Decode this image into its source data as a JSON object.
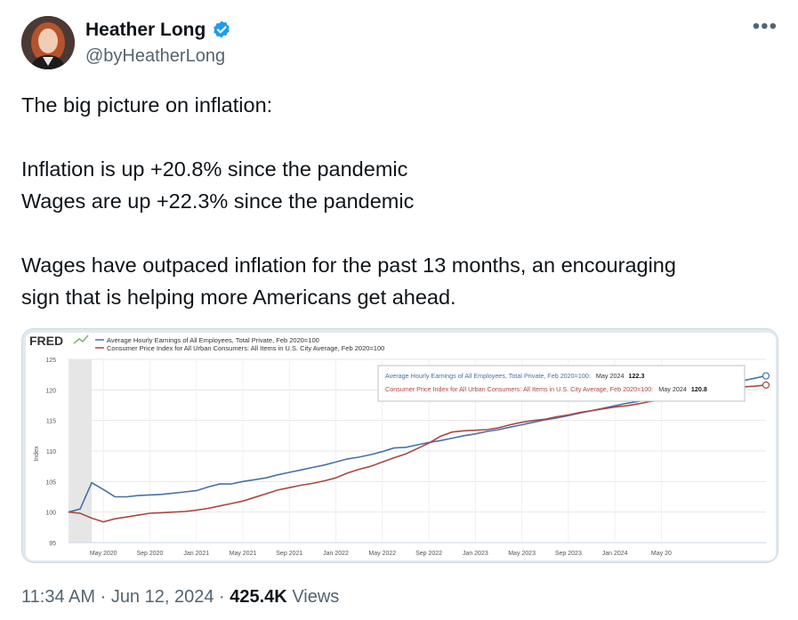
{
  "author": {
    "display_name": "Heather Long",
    "handle": "@byHeatherLong",
    "verified": true,
    "verified_color": "#1d9bf0"
  },
  "more_label": "•••",
  "tweet": {
    "lines": [
      "The big picture on inflation:",
      "",
      "Inflation is up +20.8% since the pandemic",
      "Wages are up +22.3% since the pandemic",
      "",
      "Wages have outpaced inflation for the past 13 months, an encouraging",
      "sign that is helping more Americans get ahead."
    ]
  },
  "chart_data": {
    "type": "line",
    "source_logo": "FRED",
    "legend": [
      "Average Hourly Earnings of All Employees, Total Private, Feb 2020=100",
      "Consumer Price Index for All Urban Consumers: All Items in U.S. City Average, Feb 2020=100"
    ],
    "ylabel": "Index",
    "ylim": [
      95,
      125
    ],
    "yticks": [
      "95",
      "100",
      "105",
      "110",
      "115",
      "120",
      "125"
    ],
    "xticks": [
      "May 2020",
      "Sep 2020",
      "Jan 2021",
      "May 2021",
      "Sep 2021",
      "Jan 2022",
      "May 2022",
      "Sep 2022",
      "Jan 2023",
      "May 2023",
      "Sep 2023",
      "Jan 2024",
      "May 20"
    ],
    "grid": true,
    "recession_shading": [
      "Feb 2020",
      "Apr 2020"
    ],
    "tooltip": {
      "line1_label": "Average Hourly Earnings of All Employees, Total Private, Feb 2020=100:",
      "line1_date": "May 2024",
      "line1_value": "122.3",
      "line2_label": "Consumer Price Index for All Urban Consumers: All Items in U.S. City Average, Feb 2020=100:",
      "line2_date": "May 2024",
      "line2_value": "120.8"
    },
    "colors": {
      "wages": "#4572a7",
      "cpi": "#aa4643"
    },
    "series": [
      {
        "name": "Average Hourly Earnings of All Employees, Total Private, Feb 2020=100",
        "values": [
          100,
          100.5,
          104.8,
          103.7,
          102.5,
          102.5,
          102.7,
          102.8,
          102.9,
          103.1,
          103.3,
          103.5,
          104.1,
          104.6,
          104.6,
          105.0,
          105.3,
          105.6,
          106.1,
          106.5,
          106.9,
          107.3,
          107.7,
          108.2,
          108.7,
          109.0,
          109.4,
          109.9,
          110.5,
          110.6,
          111.0,
          111.4,
          111.7,
          112.1,
          112.5,
          112.8,
          113.2,
          113.5,
          113.9,
          114.3,
          114.7,
          115.1,
          115.4,
          115.8,
          116.2,
          116.6,
          117.0,
          117.4,
          117.8,
          118.1,
          118.5,
          118.9,
          119.2,
          119.6,
          120.0,
          120.4,
          120.8,
          121.2,
          121.5,
          121.9,
          122.3
        ]
      },
      {
        "name": "Consumer Price Index for All Urban Consumers: All Items in U.S. City Average, Feb 2020=100",
        "values": [
          100,
          99.8,
          99.0,
          98.4,
          98.9,
          99.2,
          99.5,
          99.8,
          99.9,
          100.0,
          100.1,
          100.3,
          100.6,
          101.0,
          101.4,
          101.8,
          102.4,
          103.0,
          103.6,
          104.0,
          104.4,
          104.7,
          105.1,
          105.6,
          106.4,
          107.0,
          107.5,
          108.2,
          108.9,
          109.5,
          110.4,
          111.3,
          112.4,
          113.1,
          113.3,
          113.4,
          113.5,
          113.8,
          114.3,
          114.7,
          115.0,
          115.2,
          115.6,
          115.9,
          116.3,
          116.6,
          116.9,
          117.2,
          117.4,
          117.7,
          118.1,
          118.4,
          118.7,
          118.9,
          119.1,
          119.4,
          119.8,
          120.2,
          120.5,
          120.6,
          120.8
        ]
      }
    ]
  },
  "footer": {
    "time": "11:34 AM",
    "separator": " · ",
    "date": "Jun 12, 2024",
    "views_count": "425.4K",
    "views_label": "Views"
  }
}
